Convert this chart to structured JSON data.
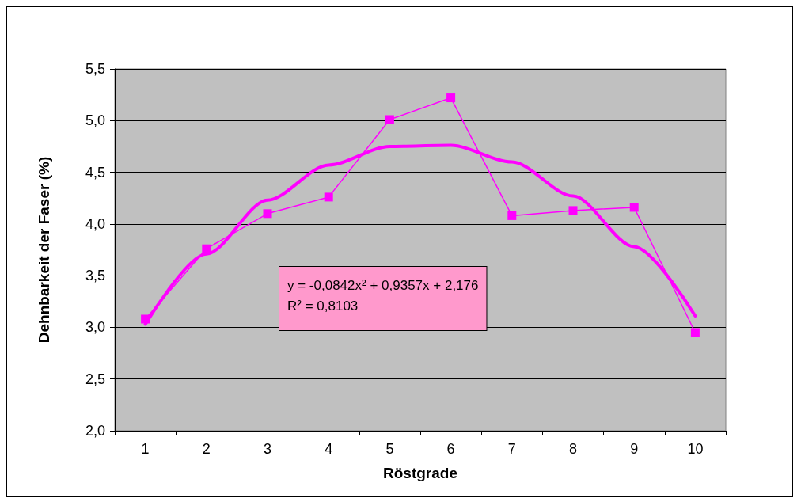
{
  "chart_data": {
    "type": "line",
    "xlabel": "Röstgrade",
    "ylabel": "Dehnbarkeit der Faser (%)",
    "categories": [
      "1",
      "2",
      "3",
      "4",
      "5",
      "6",
      "7",
      "8",
      "9",
      "10"
    ],
    "series": [
      {
        "color": "#ff00ff",
        "marker": "square",
        "values": [
          3.08,
          3.76,
          4.1,
          4.26,
          5.01,
          5.22,
          4.08,
          4.13,
          4.16,
          2.95
        ]
      },
      {
        "color": "#ff00ff",
        "marker": "none",
        "values": [
          3.03,
          3.71,
          4.23,
          4.57,
          4.75,
          4.76,
          4.6,
          4.27,
          3.78,
          3.11
        ]
      }
    ],
    "ylim": [
      2,
      5.5
    ],
    "yticks": [
      {
        "value": 2,
        "label": "2,0"
      },
      {
        "value": 2.5,
        "label": "2,5"
      },
      {
        "value": 3,
        "label": "3,0"
      },
      {
        "value": 3.5,
        "label": "3,5"
      },
      {
        "value": 4,
        "label": "4,0"
      },
      {
        "value": 4.5,
        "label": "4,5"
      },
      {
        "value": 5,
        "label": "5,0"
      },
      {
        "value": 5.5,
        "label": "5,5"
      }
    ],
    "grid": "y",
    "annotations": [
      "y = -0,0842x² + 0,9357x + 2,176\nR² = 0,8103"
    ]
  }
}
